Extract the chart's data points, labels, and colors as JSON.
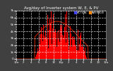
{
  "title": "Avg/day of Inverter system W, E, & PV",
  "legend_actual": "ACTUAL",
  "legend_average": "AVERAGE",
  "bg_color": "#404040",
  "plot_bg_color": "#000000",
  "bar_color": "#ff0000",
  "avg_line_color": "#cc2200",
  "actual_color": "#4444ff",
  "average_color": "#ff8800",
  "grid_color": "#ffffff",
  "title_color": "#ffffff",
  "tick_color": "#ffffff",
  "ylim": [
    0,
    7000
  ],
  "n_points": 288,
  "peak_index": 130,
  "spread": 65,
  "peak_value": 6800,
  "yticks": [
    0,
    1000,
    2000,
    3000,
    4000,
    5000,
    6000,
    7000
  ],
  "title_fontsize": 4.0
}
